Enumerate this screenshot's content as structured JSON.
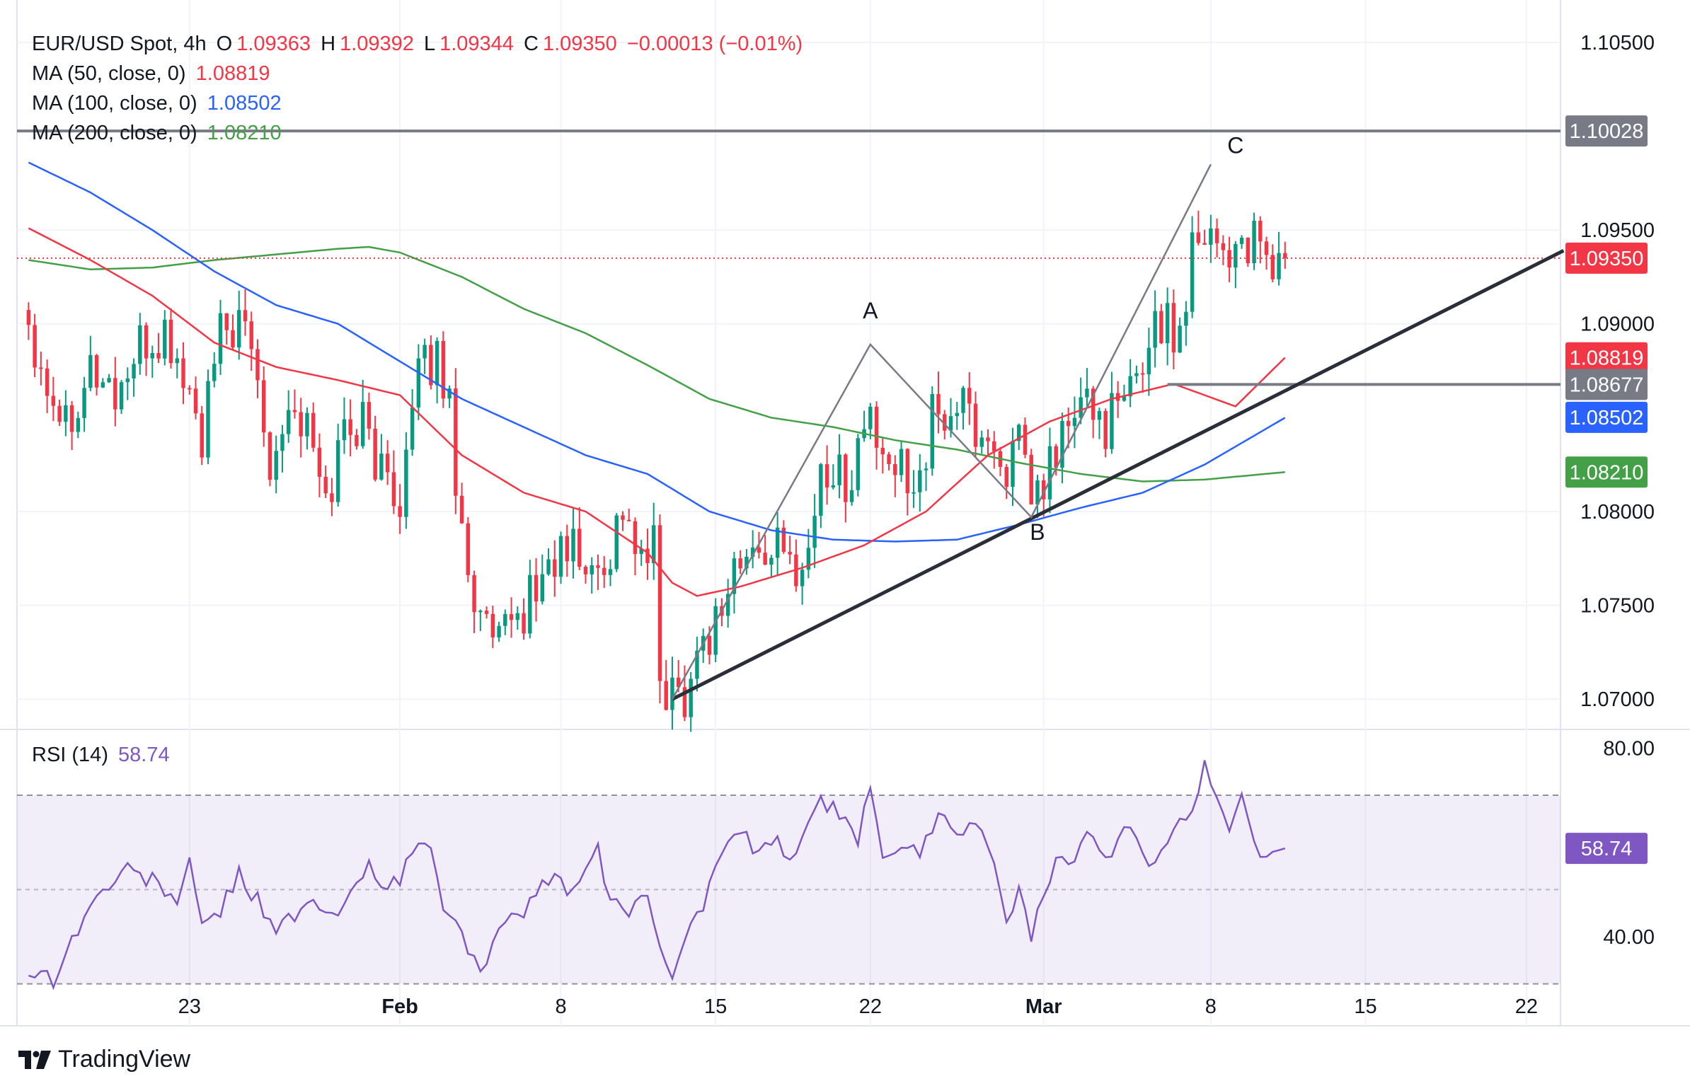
{
  "header": {
    "symbol": "EUR/USD Spot, 4h",
    "o_label": "O",
    "o_value": "1.09363",
    "h_label": "H",
    "h_value": "1.09392",
    "l_label": "L",
    "l_value": "1.09344",
    "c_label": "C",
    "c_value": "1.09350",
    "change": "−0.00013 (−0.01%)"
  },
  "indicators": [
    {
      "label": "MA (50, close, 0)",
      "value": "1.08819",
      "color": "#f23645"
    },
    {
      "label": "MA (100, close, 0)",
      "value": "1.08502",
      "color": "#2962ff"
    },
    {
      "label": "MA (200, close, 0)",
      "value": "1.08210",
      "color": "#43a047"
    }
  ],
  "rsi": {
    "label": "RSI (14)",
    "value": "58.74",
    "color": "#7e57c2"
  },
  "brand": "TradingView",
  "colors": {
    "up": "#089981",
    "down": "#f23645",
    "trend": "#2a2e39",
    "level": "#787b86"
  },
  "chart_data": {
    "type": "candlestick",
    "title": "EUR/USD Spot, 4h",
    "price_axis": {
      "ylim": [
        1.0685,
        1.1059
      ],
      "ticks": [
        "1.10500",
        "1.09500",
        "1.09000",
        "1.08000",
        "1.07500",
        "1.07000"
      ]
    },
    "time_axis": {
      "labels": [
        {
          "text": "23",
          "index": 26
        },
        {
          "text": "Feb",
          "index": 60
        },
        {
          "text": "8",
          "index": 86
        },
        {
          "text": "15",
          "index": 111
        },
        {
          "text": "22",
          "index": 136
        },
        {
          "text": "Mar",
          "index": 164
        },
        {
          "text": "8",
          "index": 191
        },
        {
          "text": "15",
          "index": 216
        },
        {
          "text": "22",
          "index": 242
        }
      ],
      "total_slots": 248
    },
    "price_labels": [
      {
        "value": "1.10028",
        "color": "#787b86"
      },
      {
        "value": "1.09350",
        "color": "#f23645"
      },
      {
        "value": "1.08819",
        "color": "#f23645"
      },
      {
        "value": "1.08677",
        "color": "#787b86"
      },
      {
        "value": "1.08502",
        "color": "#2962ff"
      },
      {
        "value": "1.08210",
        "color": "#43a047"
      }
    ],
    "horizontal_levels": [
      {
        "value": 1.10028,
        "from_index": 0,
        "style": "solid",
        "color": "#787b86"
      },
      {
        "value": 1.08677,
        "from_index": 184,
        "style": "solid",
        "color": "#787b86"
      },
      {
        "value": 1.0935,
        "from_index": 0,
        "style": "dotted",
        "color": "#f23645"
      }
    ],
    "trendline": {
      "p1": [
        104,
        1.07
      ],
      "p2": [
        248,
        1.0939
      ]
    },
    "wave_lines": [
      [
        104,
        1.07
      ],
      [
        136,
        1.0889
      ],
      [
        162,
        1.0797
      ],
      [
        191,
        1.0985
      ]
    ],
    "wave_labels": [
      {
        "text": "A",
        "index": 136,
        "price": 1.0903
      },
      {
        "text": "B",
        "index": 163,
        "price": 1.0785
      },
      {
        "text": "C",
        "index": 195,
        "price": 1.0991
      }
    ],
    "close_anchors": [
      [
        0,
        1.0902
      ],
      [
        3,
        1.087
      ],
      [
        6,
        1.085
      ],
      [
        10,
        1.0878
      ],
      [
        14,
        1.0862
      ],
      [
        18,
        1.0885
      ],
      [
        22,
        1.0893
      ],
      [
        25,
        1.0872
      ],
      [
        28,
        1.0838
      ],
      [
        31,
        1.0893
      ],
      [
        33,
        1.0899
      ],
      [
        36,
        1.0888
      ],
      [
        39,
        1.083
      ],
      [
        42,
        1.0858
      ],
      [
        45,
        1.0844
      ],
      [
        48,
        1.0803
      ],
      [
        51,
        1.0846
      ],
      [
        54,
        1.0848
      ],
      [
        57,
        1.082
      ],
      [
        60,
        1.081
      ],
      [
        63,
        1.087
      ],
      [
        66,
        1.0884
      ],
      [
        68,
        1.0856
      ],
      [
        70,
        1.079
      ],
      [
        73,
        1.074
      ],
      [
        76,
        1.0726
      ],
      [
        79,
        1.0742
      ],
      [
        82,
        1.076
      ],
      [
        85,
        1.0775
      ],
      [
        88,
        1.078
      ],
      [
        91,
        1.0765
      ],
      [
        94,
        1.078
      ],
      [
        96,
        1.0804
      ],
      [
        99,
        1.077
      ],
      [
        101,
        1.078
      ],
      [
        102,
        1.071
      ],
      [
        104,
        1.0703
      ],
      [
        106,
        1.0705
      ],
      [
        108,
        1.0725
      ],
      [
        111,
        1.0742
      ],
      [
        114,
        1.077
      ],
      [
        117,
        1.0775
      ],
      [
        120,
        1.0783
      ],
      [
        123,
        1.077
      ],
      [
        126,
        1.0778
      ],
      [
        128,
        1.0823
      ],
      [
        131,
        1.0818
      ],
      [
        133,
        1.082
      ],
      [
        135,
        1.0845
      ],
      [
        136,
        1.0855
      ],
      [
        138,
        1.0818
      ],
      [
        141,
        1.0824
      ],
      [
        144,
        1.082
      ],
      [
        146,
        1.0848
      ],
      [
        148,
        1.085
      ],
      [
        150,
        1.0858
      ],
      [
        153,
        1.0845
      ],
      [
        156,
        1.0832
      ],
      [
        158,
        1.0825
      ],
      [
        160,
        1.0832
      ],
      [
        162,
        1.0805
      ],
      [
        164,
        1.0812
      ],
      [
        166,
        1.0834
      ],
      [
        168,
        1.0845
      ],
      [
        171,
        1.0858
      ],
      [
        174,
        1.0848
      ],
      [
        177,
        1.0855
      ],
      [
        180,
        1.088
      ],
      [
        182,
        1.0905
      ],
      [
        184,
        1.0898
      ],
      [
        186,
        1.0895
      ],
      [
        188,
        1.0945
      ],
      [
        190,
        1.0955
      ],
      [
        192,
        1.0945
      ],
      [
        194,
        1.0938
      ],
      [
        196,
        1.0945
      ],
      [
        198,
        1.094
      ],
      [
        200,
        1.093
      ],
      [
        203,
        1.0935
      ]
    ],
    "last_index": 203,
    "last_close": 1.0935,
    "ma50_anchors": [
      [
        0,
        1.0951
      ],
      [
        10,
        1.0934
      ],
      [
        20,
        1.0915
      ],
      [
        30,
        1.089
      ],
      [
        40,
        1.0877
      ],
      [
        50,
        1.087
      ],
      [
        60,
        1.0862
      ],
      [
        70,
        1.083
      ],
      [
        80,
        1.081
      ],
      [
        90,
        1.08
      ],
      [
        100,
        1.0778
      ],
      [
        104,
        1.0762
      ],
      [
        108,
        1.0755
      ],
      [
        115,
        1.076
      ],
      [
        125,
        1.077
      ],
      [
        135,
        1.0782
      ],
      [
        145,
        1.08
      ],
      [
        155,
        1.083
      ],
      [
        165,
        1.0848
      ],
      [
        175,
        1.086
      ],
      [
        185,
        1.0868
      ],
      [
        195,
        1.0856
      ],
      [
        203,
        1.0882
      ]
    ],
    "ma100_anchors": [
      [
        0,
        1.0986
      ],
      [
        10,
        1.097
      ],
      [
        20,
        1.095
      ],
      [
        30,
        1.0928
      ],
      [
        40,
        1.091
      ],
      [
        50,
        1.09
      ],
      [
        60,
        1.088
      ],
      [
        70,
        1.086
      ],
      [
        80,
        1.0845
      ],
      [
        90,
        1.083
      ],
      [
        100,
        1.082
      ],
      [
        110,
        1.08
      ],
      [
        120,
        1.079
      ],
      [
        130,
        1.0785
      ],
      [
        140,
        1.0784
      ],
      [
        150,
        1.0785
      ],
      [
        160,
        1.0793
      ],
      [
        170,
        1.0802
      ],
      [
        180,
        1.081
      ],
      [
        190,
        1.0825
      ],
      [
        203,
        1.085
      ]
    ],
    "ma200_anchors": [
      [
        0,
        1.0934
      ],
      [
        10,
        1.0929
      ],
      [
        20,
        1.093
      ],
      [
        30,
        1.0934
      ],
      [
        40,
        1.0937
      ],
      [
        50,
        1.094
      ],
      [
        55,
        1.0941
      ],
      [
        60,
        1.0938
      ],
      [
        70,
        1.0925
      ],
      [
        80,
        1.0908
      ],
      [
        90,
        1.0895
      ],
      [
        100,
        1.0878
      ],
      [
        110,
        1.086
      ],
      [
        120,
        1.085
      ],
      [
        130,
        1.0845
      ],
      [
        140,
        1.0838
      ],
      [
        150,
        1.0833
      ],
      [
        160,
        1.0826
      ],
      [
        170,
        1.082
      ],
      [
        180,
        1.0816
      ],
      [
        190,
        1.0817
      ],
      [
        203,
        1.0821
      ]
    ],
    "rsi": {
      "ylim": [
        28,
        82
      ],
      "ticks": [
        "80.00",
        "40.00"
      ],
      "band": [
        30,
        70
      ],
      "midline": 50,
      "last": 58.74,
      "anchors": [
        [
          0,
          33
        ],
        [
          4,
          31
        ],
        [
          8,
          42
        ],
        [
          12,
          50
        ],
        [
          16,
          54
        ],
        [
          20,
          52
        ],
        [
          24,
          48
        ],
        [
          26,
          55
        ],
        [
          28,
          42
        ],
        [
          31,
          46
        ],
        [
          34,
          53
        ],
        [
          37,
          48
        ],
        [
          40,
          42
        ],
        [
          43,
          44
        ],
        [
          46,
          47
        ],
        [
          49,
          44
        ],
        [
          52,
          48
        ],
        [
          55,
          56
        ],
        [
          57,
          52
        ],
        [
          60,
          51
        ],
        [
          62,
          58
        ],
        [
          65,
          60
        ],
        [
          67,
          46
        ],
        [
          70,
          40
        ],
        [
          73,
          34
        ],
        [
          76,
          40
        ],
        [
          80,
          46
        ],
        [
          84,
          52
        ],
        [
          88,
          50
        ],
        [
          90,
          54
        ],
        [
          92,
          58
        ],
        [
          94,
          47
        ],
        [
          97,
          46
        ],
        [
          100,
          50
        ],
        [
          102,
          36
        ],
        [
          104,
          33
        ],
        [
          106,
          40
        ],
        [
          109,
          47
        ],
        [
          112,
          58
        ],
        [
          115,
          62
        ],
        [
          118,
          57
        ],
        [
          121,
          60
        ],
        [
          124,
          56
        ],
        [
          126,
          64
        ],
        [
          128,
          70
        ],
        [
          131,
          65
        ],
        [
          134,
          60
        ],
        [
          136,
          72
        ],
        [
          138,
          58
        ],
        [
          141,
          60
        ],
        [
          144,
          57
        ],
        [
          147,
          67
        ],
        [
          150,
          63
        ],
        [
          153,
          64
        ],
        [
          156,
          55
        ],
        [
          158,
          45
        ],
        [
          160,
          49
        ],
        [
          162,
          40
        ],
        [
          164,
          48
        ],
        [
          166,
          55
        ],
        [
          169,
          57
        ],
        [
          172,
          62
        ],
        [
          175,
          57
        ],
        [
          178,
          64
        ],
        [
          180,
          56
        ],
        [
          183,
          58
        ],
        [
          186,
          66
        ],
        [
          188,
          65
        ],
        [
          190,
          77
        ],
        [
          192,
          70
        ],
        [
          194,
          62
        ],
        [
          196,
          70
        ],
        [
          198,
          60
        ],
        [
          200,
          57
        ],
        [
          203,
          58.74
        ]
      ]
    }
  }
}
